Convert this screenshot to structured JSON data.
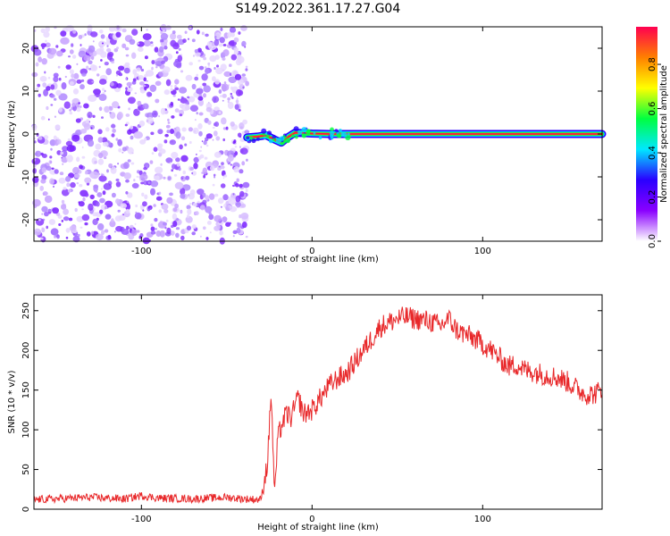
{
  "title": "S149.2022.361.17.27.G04",
  "colormap": [
    "#ffffff",
    "#8a00ff",
    "#2a00ff",
    "#00e8ff",
    "#00ff40",
    "#ffff00",
    "#ff8000",
    "#ff0050"
  ],
  "chart_data": [
    {
      "type": "heatmap",
      "xlabel": "Height of straight line (km)",
      "ylabel": "Frequency (Hz)",
      "xlim": [
        -163,
        170
      ],
      "ylim": [
        -25,
        25
      ],
      "xticks": [
        -100,
        0,
        100
      ],
      "yticks": [
        -20,
        -10,
        0,
        10,
        20
      ],
      "noise_region_x": [
        -163,
        -38
      ],
      "ridge": {
        "x": [
          -38,
          -32,
          -27,
          -22,
          -18,
          -14,
          -10,
          -5,
          0,
          10,
          20,
          40,
          60,
          80,
          100,
          120,
          140,
          160,
          170
        ],
        "y": [
          -0.8,
          -0.6,
          -0.3,
          -1.3,
          -2.0,
          -0.7,
          0.3,
          0.2,
          0.1,
          0.0,
          0.0,
          0.0,
          0.0,
          0.0,
          0.0,
          0.0,
          0.0,
          0.0,
          0.0
        ]
      },
      "colorbar": {
        "label": "Normalized spectral amplitude",
        "range": [
          0.0,
          0.97
        ],
        "ticks": [
          "0.0",
          "0.2",
          "0.4",
          "0.6",
          "0.8"
        ]
      }
    },
    {
      "type": "line",
      "xlabel": "Height of straight line (km)",
      "ylabel": "SNR (10 * v/v)",
      "xlim": [
        -163,
        170
      ],
      "ylim": [
        0,
        270
      ],
      "xticks": [
        -100,
        0,
        100
      ],
      "yticks": [
        0,
        50,
        100,
        150,
        200,
        250
      ],
      "series": [
        {
          "color": "#e8282a",
          "x": [
            -163,
            -150,
            -130,
            -110,
            -100,
            -90,
            -70,
            -50,
            -40,
            -30,
            -26,
            -24,
            -22,
            -20,
            -18,
            -15,
            -12,
            -10,
            -8,
            -5,
            0,
            5,
            10,
            15,
            20,
            25,
            30,
            35,
            40,
            45,
            50,
            55,
            60,
            65,
            70,
            75,
            80,
            85,
            90,
            95,
            100,
            105,
            110,
            115,
            120,
            125,
            130,
            135,
            140,
            145,
            150,
            155,
            160,
            165,
            170
          ],
          "y": [
            12,
            13,
            15,
            13,
            17,
            14,
            13,
            15,
            13,
            12,
            60,
            150,
            20,
            90,
            105,
            120,
            115,
            130,
            140,
            120,
            125,
            140,
            155,
            165,
            170,
            185,
            200,
            215,
            230,
            235,
            240,
            242,
            240,
            238,
            236,
            230,
            240,
            225,
            220,
            215,
            208,
            200,
            190,
            180,
            182,
            175,
            173,
            170,
            168,
            165,
            160,
            152,
            145,
            145,
            150
          ]
        }
      ]
    }
  ]
}
